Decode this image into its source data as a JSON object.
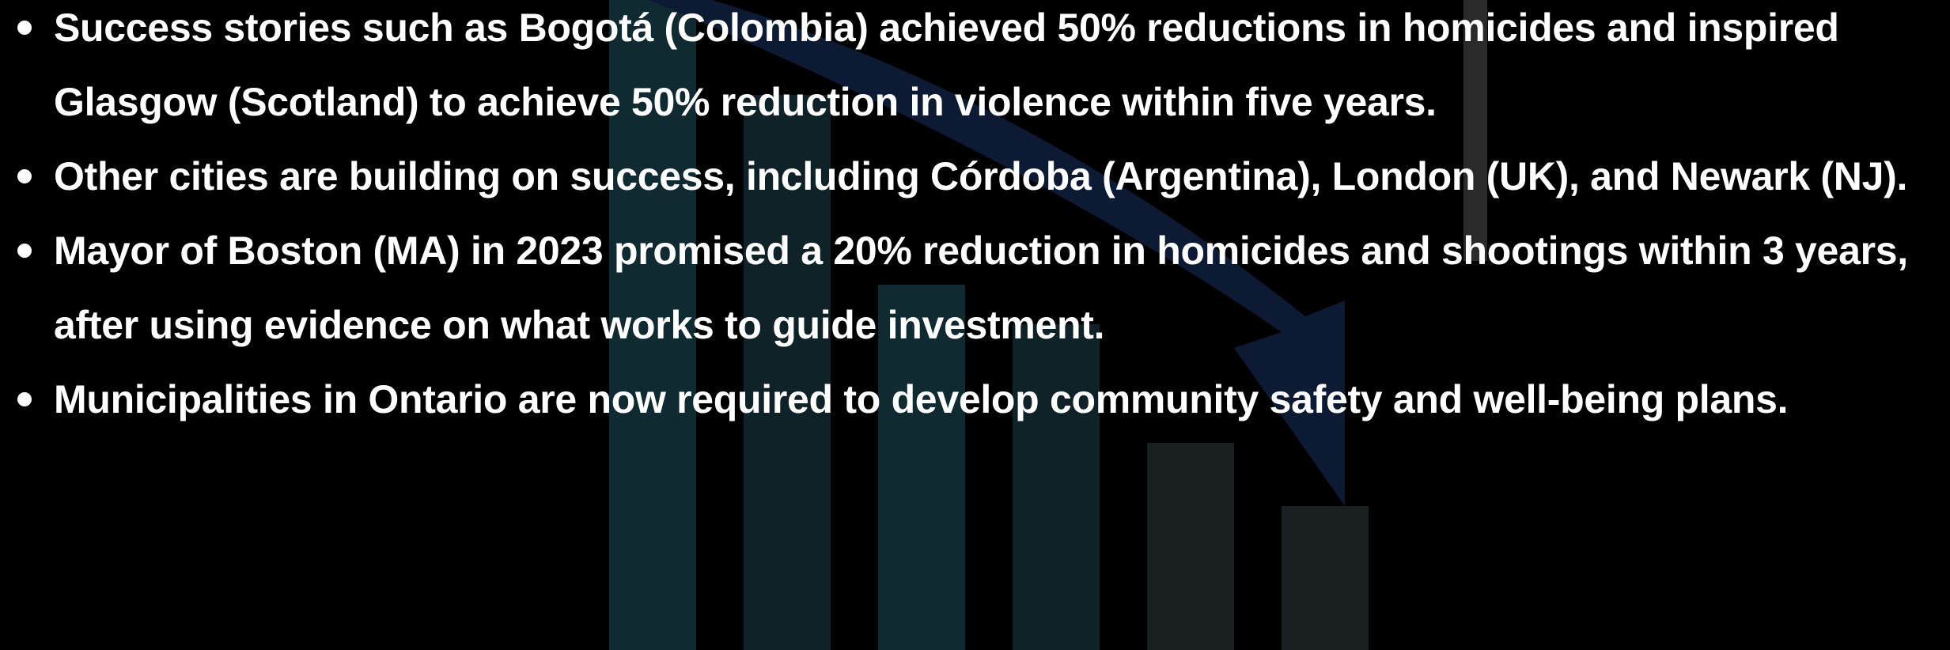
{
  "bullets": [
    "Success stories such as Bogotá (Colombia) achieved 50% reductions in homicides and inspired Glasgow (Scotland) to achieve 50% reduction in violence within five years.",
    "Other cities are building on success, including Córdoba (Argentina), London (UK), and Newark (NJ).",
    "Mayor of Boston (MA) in 2023 promised a 20% reduction in homicides and shootings within 3 years, after using evidence on what works to guide investment.",
    "Municipalities in Ontario are now required to develop community safety and well-being plans."
  ]
}
